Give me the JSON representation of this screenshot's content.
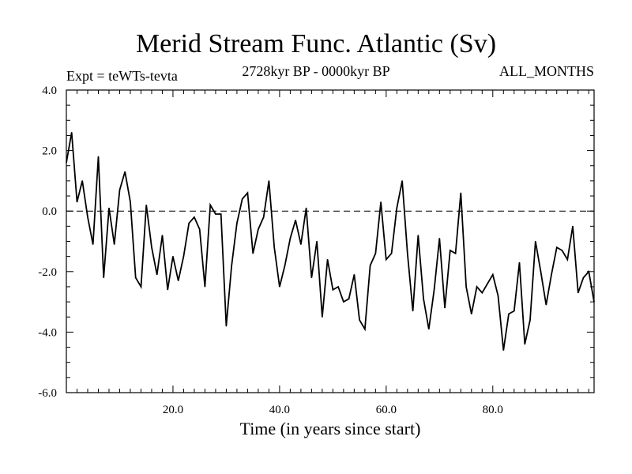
{
  "chart_data": {
    "type": "line",
    "title": "Merid Stream Func. Atlantic (Sv)",
    "subtitle_left": "Expt = teWTs-tevta",
    "subtitle_center": "2728kyr BP - 0000kyr BP",
    "subtitle_right": "ALL_MONTHS",
    "xlabel": "Time (in years since start)",
    "ylabel": "",
    "xlim": [
      0,
      99
    ],
    "ylim": [
      -6.0,
      4.0
    ],
    "xticks": [
      20.0,
      40.0,
      60.0,
      80.0
    ],
    "xtick_labels": [
      "20.0",
      "40.0",
      "60.0",
      "80.0"
    ],
    "yticks": [
      -6.0,
      -4.0,
      -2.0,
      0.0,
      2.0,
      4.0
    ],
    "ytick_labels": [
      "-6.0",
      "-4.0",
      "-2.0",
      "0.0",
      "2.0",
      "4.0"
    ],
    "zero_line": true,
    "series": [
      {
        "name": "Merid Stream Func. Atlantic",
        "color": "#000000",
        "x": [
          0,
          1,
          2,
          3,
          4,
          5,
          6,
          7,
          8,
          9,
          10,
          11,
          12,
          13,
          14,
          15,
          16,
          17,
          18,
          19,
          20,
          21,
          22,
          23,
          24,
          25,
          26,
          27,
          28,
          29,
          30,
          31,
          32,
          33,
          34,
          35,
          36,
          37,
          38,
          39,
          40,
          41,
          42,
          43,
          44,
          45,
          46,
          47,
          48,
          49,
          50,
          51,
          52,
          53,
          54,
          55,
          56,
          57,
          58,
          59,
          60,
          61,
          62,
          63,
          64,
          65,
          66,
          67,
          68,
          69,
          70,
          71,
          72,
          73,
          74,
          75,
          76,
          77,
          78,
          79,
          80,
          81,
          82,
          83,
          84,
          85,
          86,
          87,
          88,
          89,
          90,
          91,
          92,
          93,
          94,
          95,
          96,
          97,
          98,
          99
        ],
        "values": [
          1.6,
          2.6,
          0.3,
          1.0,
          -0.2,
          -1.1,
          1.8,
          -2.2,
          0.1,
          -1.1,
          0.7,
          1.3,
          0.3,
          -2.2,
          -2.5,
          0.2,
          -1.2,
          -2.1,
          -0.8,
          -2.6,
          -1.5,
          -2.3,
          -1.5,
          -0.4,
          -0.2,
          -0.6,
          -2.5,
          0.2,
          -0.1,
          -0.1,
          -3.8,
          -1.8,
          -0.4,
          0.4,
          0.6,
          -1.4,
          -0.6,
          -0.2,
          1.0,
          -1.2,
          -2.5,
          -1.8,
          -0.9,
          -0.3,
          -1.1,
          0.1,
          -2.2,
          -1.0,
          -3.5,
          -1.6,
          -2.6,
          -2.5,
          -3.0,
          -2.9,
          -2.1,
          -3.6,
          -3.9,
          -1.8,
          -1.4,
          0.3,
          -1.6,
          -1.4,
          0.1,
          1.0,
          -1.4,
          -3.3,
          -0.8,
          -2.9,
          -3.9,
          -2.6,
          -0.9,
          -3.2,
          -1.3,
          -1.4,
          0.6,
          -2.5,
          -3.4,
          -2.5,
          -2.7,
          -2.4,
          -2.1,
          -2.8,
          -4.6,
          -3.4,
          -3.3,
          -1.7,
          -4.4,
          -3.6,
          -1.0,
          -2.0,
          -3.1,
          -2.1,
          -1.2,
          -1.3,
          -1.6,
          -0.5,
          -2.7,
          -2.2,
          -2.0,
          -3.0
        ]
      }
    ]
  }
}
